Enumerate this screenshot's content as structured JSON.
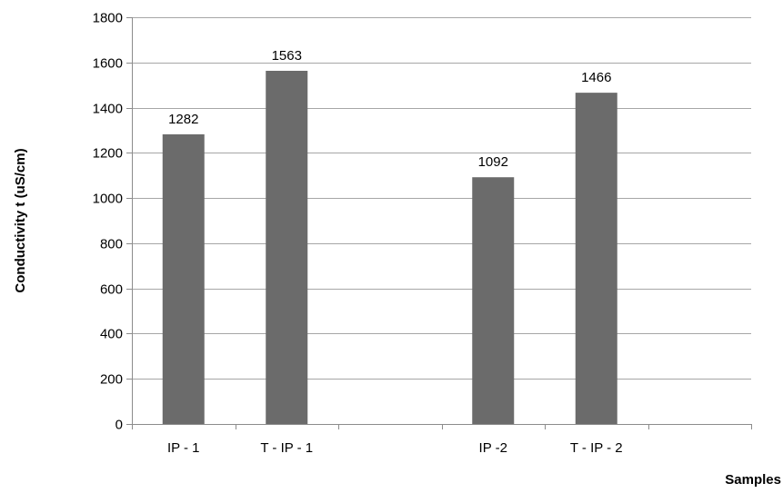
{
  "chart_data": {
    "type": "bar",
    "categories": [
      "IP - 1",
      "T - IP - 1",
      "",
      "IP -2",
      "T - IP - 2",
      ""
    ],
    "values": [
      1282,
      1563,
      null,
      1092,
      1466,
      null
    ],
    "data_labels": [
      "1282",
      "1563",
      "",
      "1092",
      "1466",
      ""
    ],
    "xlabel": "Samples",
    "ylabel": "Conductivity t (uS/cm)",
    "ylim": [
      0,
      1800
    ],
    "yticks": [
      0,
      200,
      400,
      600,
      800,
      1000,
      1200,
      1400,
      1600,
      1800
    ],
    "grid": "horizontal",
    "legend": "none",
    "colors": {
      "bar": "#6b6b6b",
      "grid": "#a6a6a6",
      "axis": "#8c8c8c",
      "text": "#000000"
    }
  }
}
